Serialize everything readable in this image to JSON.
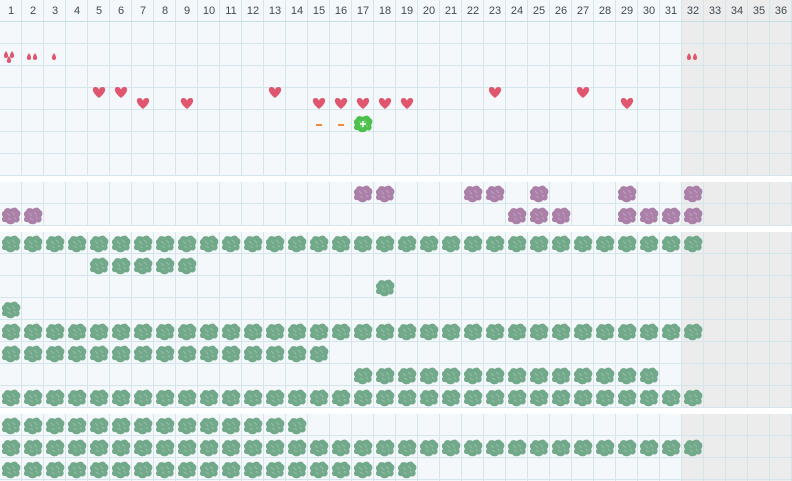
{
  "board": {
    "columns": 36,
    "playable_columns": 31,
    "column_labels": [
      "1",
      "2",
      "3",
      "4",
      "5",
      "6",
      "7",
      "8",
      "9",
      "10",
      "11",
      "12",
      "13",
      "14",
      "15",
      "16",
      "17",
      "18",
      "19",
      "20",
      "21",
      "22",
      "23",
      "24",
      "25",
      "26",
      "27",
      "28",
      "29",
      "30",
      "31",
      "32",
      "33",
      "34",
      "35",
      "36"
    ],
    "colors": {
      "background": "#f5f8fa",
      "grid_line": "#d4e6ec",
      "locked_columns": "#ececec",
      "section_gap": "#ffffff",
      "number_text": "#3f4a55",
      "heart": "#e0566e",
      "drop": "#e0566e",
      "dash": "#f08a3c",
      "player_blob": "#4cbf4c",
      "purple_blob": "#aa7fa8",
      "green_blob": "#72a98a"
    }
  },
  "top": {
    "drops": [
      {
        "col": 1,
        "row": 1,
        "count": 3
      },
      {
        "col": 2,
        "row": 1,
        "count": 2
      },
      {
        "col": 3,
        "row": 1,
        "count": 1
      },
      {
        "col": 32,
        "row": 1,
        "count": 2
      }
    ],
    "hearts": [
      {
        "col": 5,
        "row": 3
      },
      {
        "col": 6,
        "row": 3
      },
      {
        "col": 7,
        "row": 3.5
      },
      {
        "col": 9,
        "row": 3.5
      },
      {
        "col": 13,
        "row": 3
      },
      {
        "col": 15,
        "row": 3.5
      },
      {
        "col": 16,
        "row": 3.5
      },
      {
        "col": 17,
        "row": 3.5
      },
      {
        "col": 18,
        "row": 3.5
      },
      {
        "col": 19,
        "row": 3.5
      },
      {
        "col": 23,
        "row": 3
      },
      {
        "col": 27,
        "row": 3
      },
      {
        "col": 29,
        "row": 3.5
      }
    ],
    "dashes": [
      {
        "col": 15,
        "row": 4.3
      },
      {
        "col": 16,
        "row": 4.3
      }
    ],
    "player": {
      "col": 17,
      "row": 4.3
    }
  },
  "purple_rows": [
    [
      17,
      18,
      22,
      23,
      25,
      29,
      32
    ],
    [
      1,
      2,
      24,
      25,
      26,
      29,
      30,
      31,
      32
    ]
  ],
  "green_rows": [
    {
      "from": 1,
      "to": 32
    },
    {
      "from": 5,
      "to": 9
    },
    {
      "from": 18,
      "to": 18
    },
    {
      "from": 1,
      "to": 1
    },
    {
      "from": 1,
      "to": 32
    },
    {
      "from": 1,
      "to": 15
    },
    {
      "from": 17,
      "to": 30
    },
    {
      "from": 1,
      "to": 32
    }
  ],
  "bottom_rows": [
    {
      "from": 1,
      "to": 14
    },
    {
      "from": 1,
      "to": 32
    },
    {
      "from": 1,
      "to": 19
    }
  ]
}
